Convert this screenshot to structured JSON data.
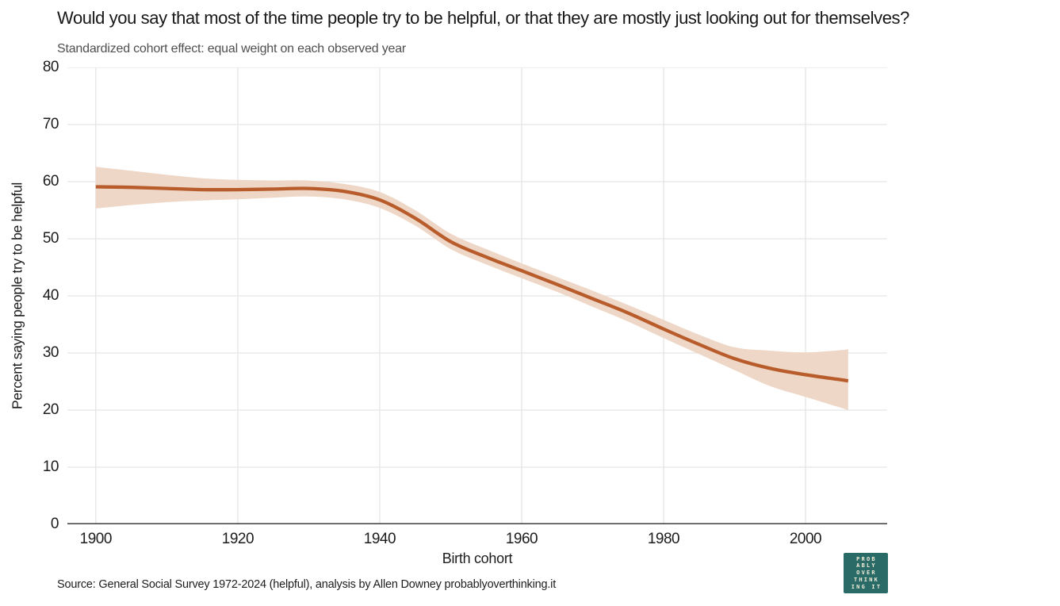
{
  "header": {
    "title": "Would you say that most of the time people try to be helpful, or that they are mostly just looking out for themselves?",
    "subtitle": "Standardized cohort effect: equal weight on each observed year"
  },
  "footer": {
    "source": "Source: General Social Survey 1972-2024 (helpful), analysis by Allen Downey probablyoverthinking.it",
    "logo_lines": [
      "PROB",
      "ABLY",
      "OVER",
      "THINK",
      "ING IT"
    ]
  },
  "colors": {
    "line": "#b85c2c",
    "band": "#eed7c6",
    "grid": "#e5e5e5",
    "axis": "#3d3d3d",
    "title_text": "#171717",
    "subtitle_text": "#4f4f4f",
    "logo_bg": "#2a6b68",
    "logo_text": "#f3eed8"
  },
  "chart_data": {
    "type": "line",
    "title": "Would you say that most of the time people try to be helpful, or that they are mostly just looking out for themselves?",
    "subtitle": "Standardized cohort effect: equal weight on each observed year",
    "xlabel": "Birth cohort",
    "ylabel": "Percent saying people try to be helpful",
    "xlim": [
      1896,
      2011.5
    ],
    "ylim": [
      0,
      80
    ],
    "x_ticks": [
      1900,
      1920,
      1940,
      1960,
      1980,
      2000
    ],
    "y_ticks": [
      0,
      10,
      20,
      30,
      40,
      50,
      60,
      70,
      80
    ],
    "grid": true,
    "legend": "none",
    "series": [
      {
        "name": "standardized cohort effect (helpful)",
        "x": [
          1900,
          1905,
          1910,
          1915,
          1920,
          1925,
          1930,
          1935,
          1940,
          1945,
          1950,
          1955,
          1960,
          1965,
          1970,
          1975,
          1980,
          1985,
          1990,
          1995,
          2000,
          2005,
          2006
        ],
        "y": [
          59.1,
          59.0,
          58.8,
          58.6,
          58.6,
          58.7,
          58.8,
          58.3,
          56.8,
          53.6,
          49.5,
          46.8,
          44.4,
          42.0,
          39.5,
          37.0,
          34.2,
          31.5,
          29.0,
          27.3,
          26.2,
          25.3,
          25.1
        ],
        "lo": [
          55.3,
          55.9,
          56.4,
          56.7,
          56.9,
          57.2,
          57.4,
          56.9,
          55.4,
          52.3,
          48.2,
          45.5,
          43.1,
          40.7,
          38.1,
          35.5,
          32.6,
          29.8,
          27.0,
          24.2,
          22.3,
          20.4,
          20.0
        ],
        "hi": [
          62.6,
          61.9,
          61.2,
          60.6,
          60.3,
          60.2,
          60.2,
          59.6,
          58.2,
          55.0,
          50.9,
          48.2,
          45.7,
          43.3,
          40.9,
          38.4,
          35.8,
          33.2,
          31.0,
          30.4,
          30.1,
          30.5,
          30.7
        ]
      }
    ]
  }
}
